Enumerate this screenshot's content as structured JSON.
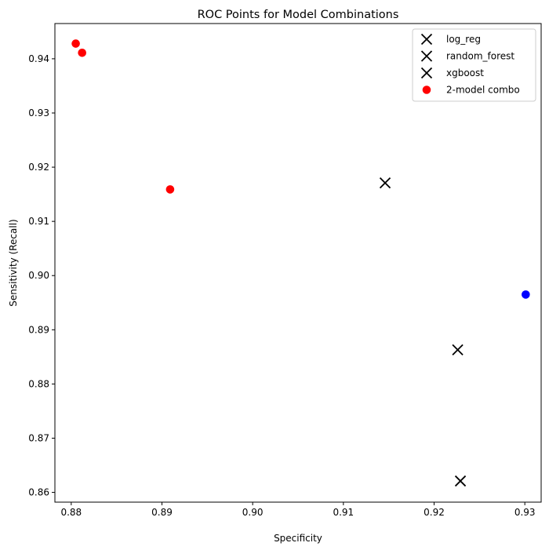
{
  "chart_data": {
    "type": "scatter",
    "title": "ROC Points for Model Combinations",
    "xlabel": "Specificity",
    "ylabel": "Sensitivity (Recall)",
    "xlim": [
      0.8782,
      0.9318
    ],
    "ylim": [
      0.8582,
      0.9465
    ],
    "xticks": [
      0.88,
      0.89,
      0.9,
      0.91,
      0.92,
      0.93
    ],
    "xtick_labels": [
      "0.88",
      "0.89",
      "0.90",
      "0.91",
      "0.92",
      "0.93"
    ],
    "yticks": [
      0.86,
      0.87,
      0.88,
      0.89,
      0.9,
      0.91,
      0.92,
      0.93,
      0.94
    ],
    "ytick_labels": [
      "0.86",
      "0.87",
      "0.88",
      "0.89",
      "0.90",
      "0.91",
      "0.92",
      "0.93",
      "0.94"
    ],
    "grid": false,
    "legend_position": "top-right",
    "series": [
      {
        "name": "log_reg",
        "marker": "x",
        "color": "#000000",
        "points": [
          {
            "x": 0.9146,
            "y": 0.9171
          }
        ]
      },
      {
        "name": "random_forest",
        "marker": "x",
        "color": "#000000",
        "points": [
          {
            "x": 0.9226,
            "y": 0.8863
          }
        ]
      },
      {
        "name": "xgboost",
        "marker": "x",
        "color": "#000000",
        "points": [
          {
            "x": 0.9229,
            "y": 0.8621
          }
        ]
      },
      {
        "name": "2-model combo",
        "marker": "o",
        "color": "#ff0000",
        "points": [
          {
            "x": 0.8805,
            "y": 0.9428
          },
          {
            "x": 0.8812,
            "y": 0.9411
          },
          {
            "x": 0.8909,
            "y": 0.9159
          }
        ]
      },
      {
        "marker": "o",
        "color": "#0000ff",
        "points": [
          {
            "x": 0.9301,
            "y": 0.8965
          }
        ]
      }
    ]
  }
}
